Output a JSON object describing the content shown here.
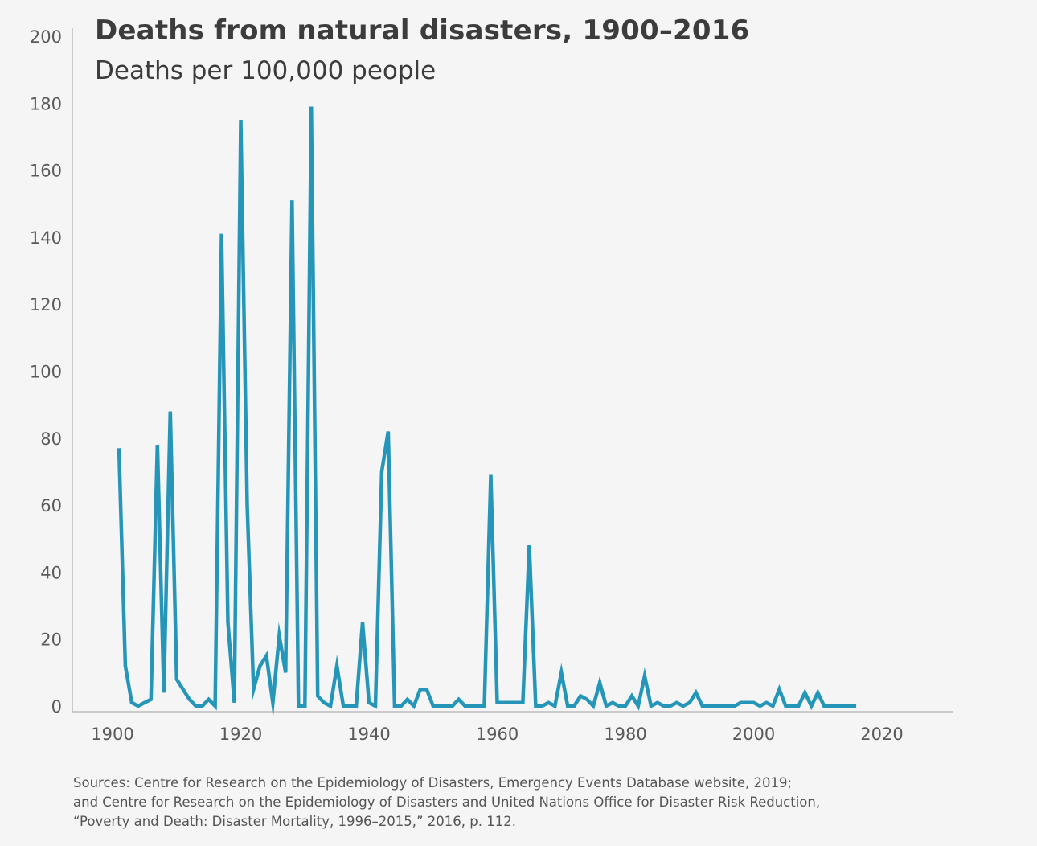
{
  "title": "Deaths from natural disasters, 1900–2016",
  "subtitle": "Deaths per 100,000 people",
  "sources": [
    "Sources: Centre for Research on the Epidemiology of Disasters, Emergency Events Database website, 2019;",
    "and Centre for Research on the Epidemiology of Disasters and United Nations Office for Disaster Risk Reduction,",
    "“Poverty and Death: Disaster Mortality, 1996–2015,” 2016, p. 112."
  ],
  "colors": {
    "line": "#2596b8",
    "axis": "#bdbdbd",
    "background": "#f5f5f5"
  },
  "chart_data": {
    "type": "line",
    "title": "Deaths from natural disasters, 1900–2016",
    "subtitle": "Deaths per 100,000 people",
    "xlim": [
      1895,
      2030
    ],
    "ylim": [
      0,
      200
    ],
    "x_ticks": [
      1900,
      1920,
      1940,
      1960,
      1980,
      2000,
      2020
    ],
    "y_ticks": [
      0,
      20,
      40,
      60,
      80,
      100,
      120,
      140,
      160,
      180,
      200
    ],
    "x_tick_labels": [
      "1900",
      "1920",
      "1940",
      "1960",
      "1980",
      "2000",
      "2020"
    ],
    "y_tick_labels": [
      "0",
      "20",
      "40",
      "60",
      "80",
      "100",
      "120",
      "140",
      "160",
      "180",
      "200"
    ],
    "grid": false,
    "series": [
      {
        "points": [
          [
            1901,
            77
          ],
          [
            1902,
            12
          ],
          [
            1903,
            1
          ],
          [
            1904,
            0
          ],
          [
            1905,
            1
          ],
          [
            1906,
            2
          ],
          [
            1907,
            78
          ],
          [
            1908,
            4
          ],
          [
            1909,
            88
          ],
          [
            1910,
            8
          ],
          [
            1911,
            5
          ],
          [
            1912,
            2
          ],
          [
            1913,
            0
          ],
          [
            1914,
            0
          ],
          [
            1915,
            2
          ],
          [
            1916,
            0
          ],
          [
            1917,
            141
          ],
          [
            1918,
            25
          ],
          [
            1919,
            1
          ],
          [
            1920,
            175
          ],
          [
            1921,
            60
          ],
          [
            1922,
            5
          ],
          [
            1923,
            12
          ],
          [
            1924,
            15
          ],
          [
            1925,
            1
          ],
          [
            1926,
            21
          ],
          [
            1927,
            10
          ],
          [
            1928,
            151
          ],
          [
            1929,
            0
          ],
          [
            1930,
            0
          ],
          [
            1931,
            179
          ],
          [
            1932,
            3
          ],
          [
            1933,
            1
          ],
          [
            1934,
            0
          ],
          [
            1935,
            12
          ],
          [
            1936,
            0
          ],
          [
            1937,
            0
          ],
          [
            1938,
            0
          ],
          [
            1939,
            25
          ],
          [
            1940,
            1
          ],
          [
            1941,
            0
          ],
          [
            1942,
            70
          ],
          [
            1943,
            82
          ],
          [
            1944,
            0
          ],
          [
            1945,
            0
          ],
          [
            1946,
            2
          ],
          [
            1947,
            0
          ],
          [
            1948,
            5
          ],
          [
            1949,
            5
          ],
          [
            1950,
            0
          ],
          [
            1951,
            0
          ],
          [
            1952,
            0
          ],
          [
            1953,
            0
          ],
          [
            1954,
            2
          ],
          [
            1955,
            0
          ],
          [
            1956,
            0
          ],
          [
            1957,
            0
          ],
          [
            1958,
            0
          ],
          [
            1959,
            69
          ],
          [
            1960,
            1
          ],
          [
            1961,
            1
          ],
          [
            1962,
            1
          ],
          [
            1963,
            1
          ],
          [
            1964,
            1
          ],
          [
            1965,
            48
          ],
          [
            1966,
            0
          ],
          [
            1967,
            0
          ],
          [
            1968,
            1
          ],
          [
            1969,
            0
          ],
          [
            1970,
            10
          ],
          [
            1971,
            0
          ],
          [
            1972,
            0
          ],
          [
            1973,
            3
          ],
          [
            1974,
            2
          ],
          [
            1975,
            0
          ],
          [
            1976,
            7
          ],
          [
            1977,
            0
          ],
          [
            1978,
            1
          ],
          [
            1979,
            0
          ],
          [
            1980,
            0
          ],
          [
            1981,
            3
          ],
          [
            1982,
            0
          ],
          [
            1983,
            9
          ],
          [
            1984,
            0
          ],
          [
            1985,
            1
          ],
          [
            1986,
            0
          ],
          [
            1987,
            0
          ],
          [
            1988,
            1
          ],
          [
            1989,
            0
          ],
          [
            1990,
            1
          ],
          [
            1991,
            4
          ],
          [
            1992,
            0
          ],
          [
            1993,
            0
          ],
          [
            1994,
            0
          ],
          [
            1995,
            0
          ],
          [
            1996,
            0
          ],
          [
            1997,
            0
          ],
          [
            1998,
            1
          ],
          [
            1999,
            1
          ],
          [
            2000,
            1
          ],
          [
            2001,
            0
          ],
          [
            2002,
            1
          ],
          [
            2003,
            0
          ],
          [
            2004,
            5
          ],
          [
            2005,
            0
          ],
          [
            2006,
            0
          ],
          [
            2007,
            0
          ],
          [
            2008,
            4
          ],
          [
            2009,
            0
          ],
          [
            2010,
            4
          ],
          [
            2011,
            0
          ],
          [
            2012,
            0
          ],
          [
            2013,
            0
          ],
          [
            2014,
            0
          ],
          [
            2015,
            0
          ],
          [
            2016,
            0
          ]
        ]
      }
    ]
  }
}
